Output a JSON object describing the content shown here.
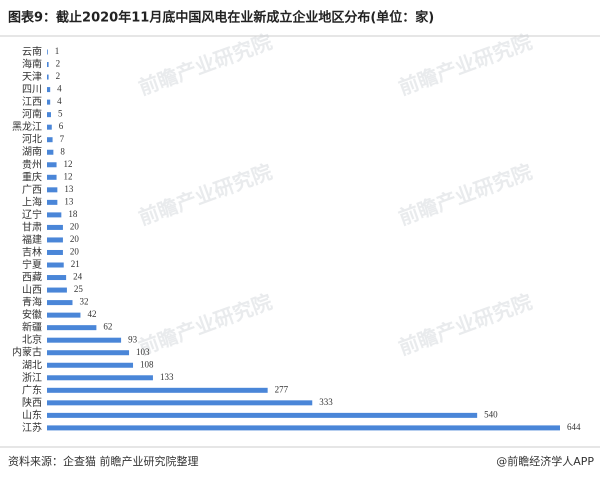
{
  "chart_data": {
    "type": "hbar",
    "title": "图表9：截止2020年11月底中国风电在业新成立企业地区分布(单位：家)",
    "categories": [
      "云南",
      "海南",
      "天津",
      "四川",
      "江西",
      "河南",
      "黑龙江",
      "河北",
      "湖南",
      "贵州",
      "重庆",
      "广西",
      "上海",
      "辽宁",
      "甘肃",
      "福建",
      "吉林",
      "宁夏",
      "西藏",
      "山西",
      "青海",
      "安徽",
      "新疆",
      "北京",
      "内蒙古",
      "湖北",
      "浙江",
      "广东",
      "陕西",
      "山东",
      "江苏"
    ],
    "values": [
      1,
      2,
      2,
      4,
      4,
      5,
      6,
      7,
      8,
      12,
      12,
      13,
      13,
      18,
      20,
      20,
      20,
      21,
      24,
      25,
      32,
      42,
      62,
      93,
      103,
      108,
      133,
      277,
      333,
      540,
      644
    ],
    "color": "#4a86d8",
    "source": "资料来源：企查猫 前瞻产业研究院整理",
    "credit": "@前瞻经济学人APP",
    "watermark": "前瞻产业研究院"
  }
}
